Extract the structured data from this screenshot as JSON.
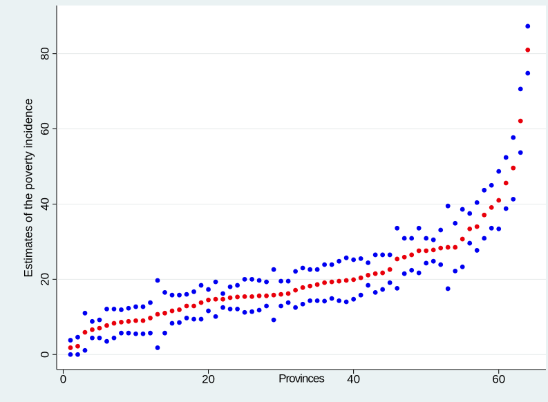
{
  "chart_data": {
    "type": "scatter",
    "x_label": "Provinces",
    "y_label": "Estimates of the poverty incidence",
    "x": [
      1,
      2,
      3,
      4,
      5,
      6,
      7,
      8,
      9,
      10,
      11,
      12,
      13,
      14,
      15,
      16,
      17,
      18,
      19,
      20,
      21,
      22,
      23,
      24,
      25,
      26,
      27,
      28,
      29,
      30,
      31,
      32,
      33,
      34,
      35,
      36,
      37,
      38,
      39,
      40,
      41,
      42,
      43,
      44,
      45,
      46,
      47,
      48,
      49,
      50,
      51,
      52,
      53,
      54,
      55,
      56,
      57,
      58,
      59,
      60,
      61,
      62,
      63,
      64
    ],
    "series": [
      {
        "color": "#0000f0",
        "values": [
          3.8,
          4.6,
          11.0,
          8.8,
          9.2,
          12.1,
          12.1,
          11.9,
          12.3,
          12.7,
          12.7,
          13.8,
          19.7,
          16.5,
          15.8,
          15.8,
          16.0,
          16.7,
          18.4,
          17.3,
          19.3,
          16.2,
          18.0,
          18.4,
          20.0,
          20.0,
          19.7,
          19.3,
          22.6,
          19.5,
          19.5,
          22.1,
          23.0,
          22.6,
          22.6,
          23.9,
          23.9,
          24.8,
          25.7,
          25.2,
          25.5,
          24.4,
          26.5,
          26.5,
          26.5,
          33.6,
          30.9,
          30.9,
          33.6,
          30.9,
          30.5,
          33.1,
          39.5,
          34.9,
          38.6,
          37.5,
          40.4,
          43.7,
          45.0,
          48.7,
          52.4,
          57.7,
          70.6,
          87.3
        ]
      },
      {
        "color": "#e8000b",
        "values": [
          1.8,
          2.2,
          5.9,
          6.6,
          7.0,
          7.7,
          8.3,
          8.6,
          8.8,
          9.0,
          9.0,
          9.7,
          10.7,
          11.0,
          11.6,
          11.9,
          12.9,
          12.9,
          13.8,
          14.5,
          14.7,
          14.7,
          15.1,
          15.3,
          15.4,
          15.4,
          15.6,
          15.6,
          15.8,
          16.0,
          16.2,
          17.1,
          17.8,
          18.2,
          18.6,
          19.1,
          19.3,
          19.5,
          19.7,
          19.9,
          20.4,
          21.1,
          21.5,
          21.7,
          22.6,
          25.4,
          25.9,
          26.5,
          27.6,
          27.6,
          27.8,
          28.3,
          28.5,
          28.5,
          30.7,
          33.4,
          34.0,
          37.1,
          39.1,
          41.0,
          45.6,
          49.6,
          62.1,
          81.0
        ]
      },
      {
        "color": "#0000f0",
        "values": [
          0,
          0,
          1.1,
          4.4,
          4.4,
          3.5,
          4.4,
          5.7,
          5.7,
          5.5,
          5.5,
          5.7,
          1.8,
          5.7,
          8.3,
          8.5,
          9.7,
          9.4,
          9.4,
          11.6,
          10.1,
          12.5,
          12.1,
          12.1,
          11.2,
          11.4,
          11.8,
          12.9,
          9.2,
          12.9,
          13.8,
          12.5,
          13.4,
          14.3,
          14.3,
          14.2,
          14.9,
          14.3,
          14.0,
          14.7,
          15.8,
          18.4,
          16.5,
          17.3,
          19.1,
          17.6,
          21.5,
          22.4,
          21.7,
          24.3,
          24.8,
          23.9,
          17.5,
          22.2,
          23.3,
          29.6,
          27.7,
          30.9,
          33.6,
          33.4,
          38.8,
          41.3,
          53.7,
          74.8
        ]
      }
    ],
    "xlim": [
      -0.9,
      66.5
    ],
    "xticks": [
      0,
      20,
      40,
      60
    ],
    "ylim": [
      -4.0,
      92.8
    ],
    "yticks": [
      0,
      20,
      40,
      60,
      80
    ],
    "grid": true
  }
}
